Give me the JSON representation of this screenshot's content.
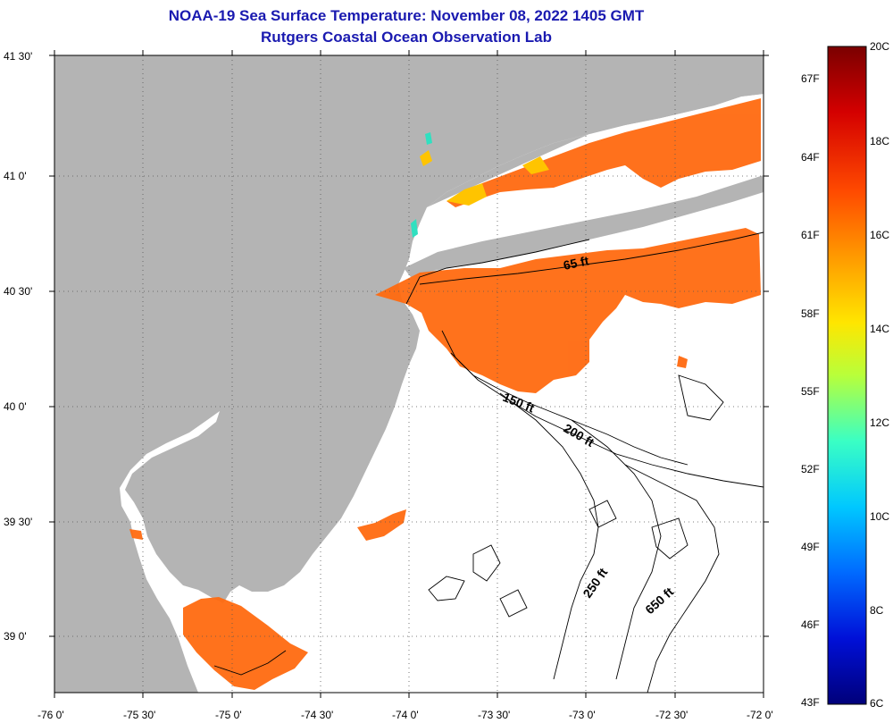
{
  "title": {
    "line1": "NOAA-19 Sea Surface Temperature:  November 08, 2022 1405 GMT",
    "line2": "Rutgers Coastal Ocean Observation Lab"
  },
  "map": {
    "land_color": "#b4b4b4",
    "ocean_nodata_color": "#ffffff",
    "lat_ticks": [
      "41 30'",
      "41 0'",
      "40 30'",
      "40 0'",
      "39 30'",
      "39 0'"
    ],
    "lon_ticks": [
      "-76 0'",
      "-75 30'",
      "-75 0'",
      "-74 30'",
      "-74 0'",
      "-73 30'",
      "-73 0'",
      "-72 30'",
      "-72 0'"
    ],
    "contour_labels": [
      "65 ft",
      "150 ft",
      "200 ft",
      "250 ft",
      "650 ft"
    ]
  },
  "colorbar": {
    "fahrenheit_labels": [
      "67F",
      "64F",
      "61F",
      "58F",
      "55F",
      "52F",
      "49F",
      "46F",
      "43F"
    ],
    "celsius_labels": [
      "20C",
      "18C",
      "16C",
      "14C",
      "12C",
      "10C",
      "8C",
      "6C"
    ],
    "colors": [
      "#7a0000",
      "#d40000",
      "#ff4a00",
      "#ff9a00",
      "#ffe600",
      "#b8ff3a",
      "#3affc4",
      "#00c8ff",
      "#006aff",
      "#0010d8",
      "#00007a"
    ]
  }
}
